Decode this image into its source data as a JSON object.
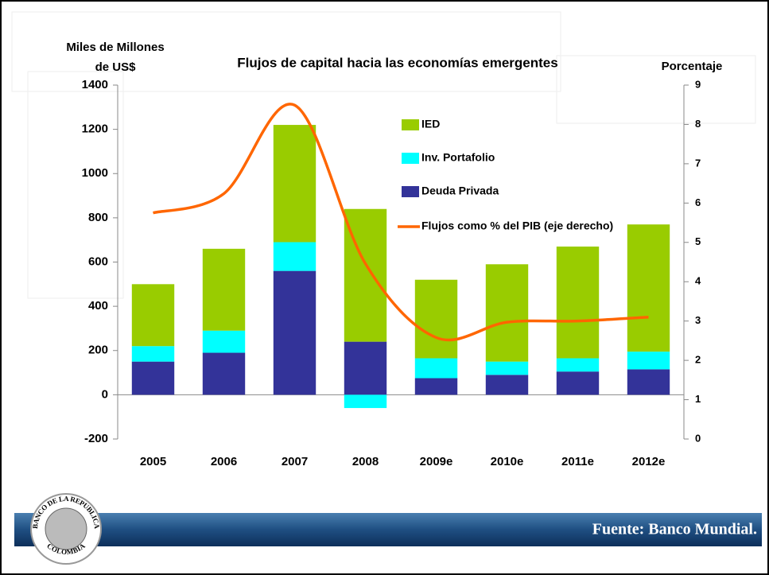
{
  "chart_data": {
    "type": "bar",
    "title": "Flujos de capital hacia las economías emergentes",
    "ylabel": [
      "Miles de Millones",
      "de US$"
    ],
    "y2label": "Porcentaje",
    "categories": [
      "2005",
      "2006",
      "2007",
      "2008",
      "2009e",
      "2010e",
      "2011e",
      "2012e"
    ],
    "series": [
      {
        "name": "Deuda Privada",
        "color": "#333399",
        "values": [
          150,
          190,
          560,
          240,
          75,
          90,
          105,
          115
        ]
      },
      {
        "name": "Inv. Portafolio",
        "color": "#00ffff",
        "values": [
          70,
          100,
          130,
          -60,
          90,
          60,
          60,
          80
        ]
      },
      {
        "name": "IED",
        "color": "#99cc00",
        "values": [
          280,
          370,
          530,
          600,
          355,
          440,
          505,
          575
        ]
      },
      {
        "name": "Flujos como % del PIB (eje derecho)",
        "color": "#ff6600",
        "type": "line",
        "axis": "y2",
        "values": [
          5.75,
          6.24,
          8.49,
          4.46,
          2.58,
          2.97,
          3.0,
          3.1
        ]
      }
    ],
    "ylim": [
      -200,
      1400
    ],
    "yticks": [
      -200,
      0,
      200,
      400,
      600,
      800,
      1000,
      1200,
      1400
    ],
    "y2lim": [
      0,
      9
    ],
    "y2ticks": [
      0,
      1,
      2,
      3,
      4,
      5,
      6,
      7,
      8,
      9
    ],
    "stacked": true
  },
  "footer": {
    "source": "Fuente: Banco Mundial.",
    "logo_top": "BANCO DE LA REPUBLICA",
    "logo_bottom": "COLOMBIA"
  }
}
